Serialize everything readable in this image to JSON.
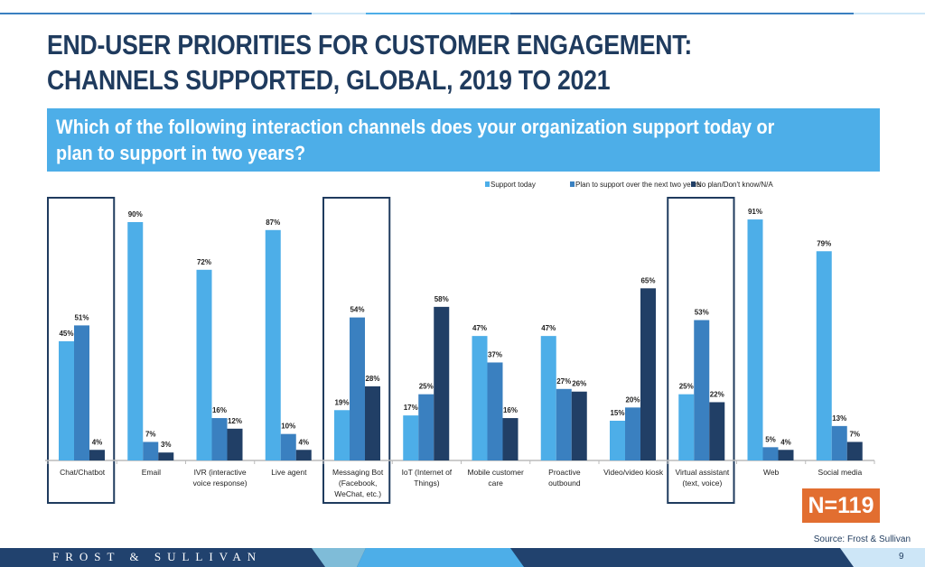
{
  "header": {
    "title_line1": "END-USER PRIORITIES FOR CUSTOMER ENGAGEMENT:",
    "title_line2": "CHANNELS SUPPORTED, GLOBAL, 2019 TO 2021",
    "question_line1": "Which of the following interaction channels does your organization support today or",
    "question_line2": "plan to support in two years?"
  },
  "chart_data": {
    "type": "bar",
    "categories": [
      [
        "Chat/Chatbot"
      ],
      [
        "Email"
      ],
      [
        "IVR (interactive",
        "voice response)"
      ],
      [
        "Live agent"
      ],
      [
        "Messaging Bot",
        "(Facebook,",
        "WeChat, etc.)"
      ],
      [
        "IoT (Internet of",
        "Things)"
      ],
      [
        "Mobile customer",
        "care"
      ],
      [
        "Proactive",
        "outbound"
      ],
      [
        "Video/video kiosk"
      ],
      [
        "Virtual assistant",
        "(text, voice)"
      ],
      [
        "Web"
      ],
      [
        "Social media"
      ]
    ],
    "series": [
      {
        "name": "Support today",
        "color": "#4daee8",
        "values": [
          45,
          90,
          72,
          87,
          19,
          17,
          47,
          47,
          15,
          25,
          91,
          79
        ]
      },
      {
        "name": "Plan to support over the next two years",
        "color": "#3a80c0",
        "values": [
          51,
          7,
          16,
          10,
          54,
          25,
          37,
          27,
          20,
          53,
          5,
          13
        ]
      },
      {
        "name": "No plan/Don't know/N/A",
        "color": "#213f66",
        "values": [
          4,
          3,
          12,
          4,
          28,
          58,
          16,
          26,
          65,
          22,
          4,
          7
        ]
      }
    ],
    "data_label_suffix": "%",
    "ylim": [
      0,
      100
    ],
    "grid": false,
    "legend": "top-right",
    "highlighted_categories": [
      0,
      4,
      9
    ]
  },
  "sample_size": "N=119",
  "source": "Source: Frost & Sullivan",
  "footer": {
    "brand": "FROST & SULLIVAN",
    "page": "9"
  }
}
